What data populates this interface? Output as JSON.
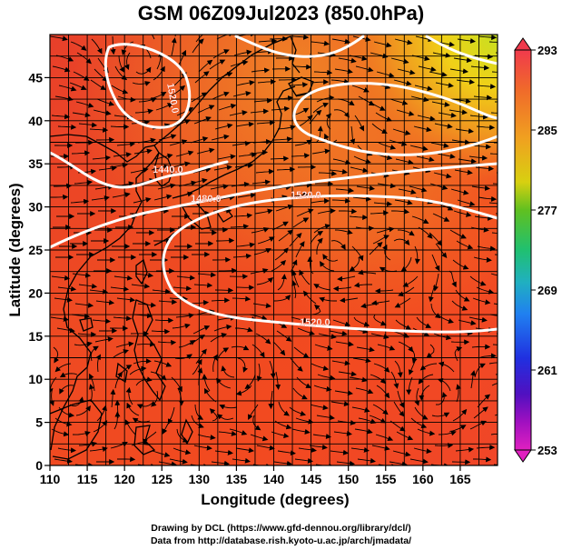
{
  "title": "GSM 06Z09Jul2023 (850.0hPa)",
  "xaxis": {
    "label": "Longitude (degrees)",
    "range": [
      110,
      170
    ],
    "ticks": [
      "110",
      "115",
      "120",
      "125",
      "130",
      "135",
      "140",
      "145",
      "150",
      "155",
      "160",
      "165"
    ]
  },
  "yaxis": {
    "label": "Latitude (degrees)",
    "range": [
      0,
      50
    ],
    "ticks": [
      "0",
      "5",
      "10",
      "15",
      "20",
      "25",
      "30",
      "35",
      "40",
      "45"
    ]
  },
  "colorbar": {
    "labels": [
      "293",
      "285",
      "277",
      "269",
      "261",
      "253"
    ],
    "colors": [
      "#f0304a",
      "#f08020",
      "#f0c010",
      "#40c020",
      "#20b0a0",
      "#2080f0",
      "#2020d0",
      "#8010c0",
      "#e020c0"
    ]
  },
  "contours": [
    {
      "label": "1440.0"
    },
    {
      "label": "1480.0"
    },
    {
      "label": "1520.0"
    },
    {
      "label": "1520.0"
    },
    {
      "label": "1520.0"
    }
  ],
  "credits": {
    "line1": "Drawing by DCL (https://www.gfd-dennou.org/library/dcl/)",
    "line2": "Data from http://database.rish.kyoto-u.ac.jp/arch/jmadata/"
  }
}
